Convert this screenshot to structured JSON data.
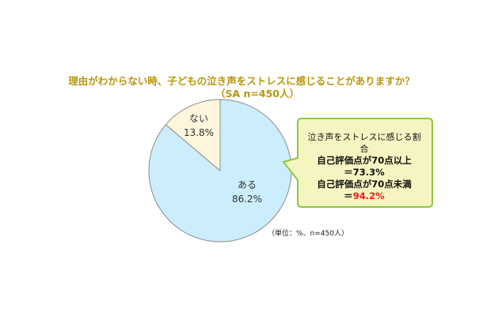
{
  "chart_data": {
    "type": "pie",
    "title": "理由がわからない時、子どもの泣き声をストレスに感じることがありますか？",
    "subtitle": "（SA n=450人）",
    "slices": [
      {
        "label": "ない",
        "value": 13.8,
        "value_label": "13.8%",
        "color": "#fdf6dd"
      },
      {
        "label": "ある",
        "value": 86.2,
        "value_label": "86.2%",
        "color": "#cceefc"
      }
    ],
    "unit_note": "（単位：%、n=450人）"
  },
  "callout": {
    "heading": "泣き声をストレスに感じる割合",
    "line1": "自己評価点が70点以上",
    "value1": "＝73.3%",
    "line2": "自己評価点が70点未満",
    "value2_prefix": "＝",
    "value2": "94.2%",
    "fill": "#f6f5c2",
    "border": "#8dc63f"
  }
}
